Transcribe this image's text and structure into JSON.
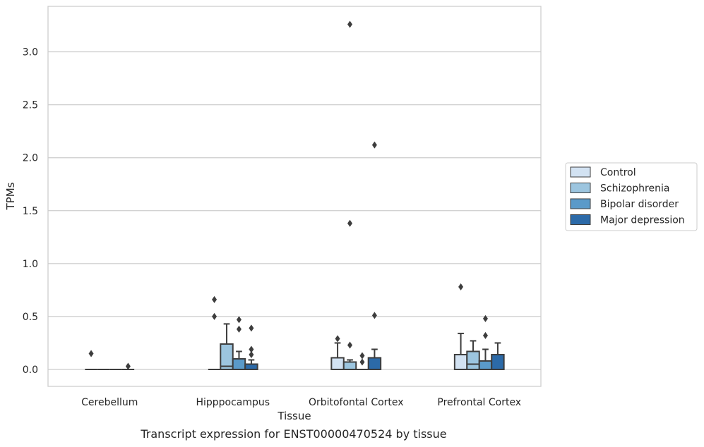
{
  "caption": "Transcript expression for ENST00000470524 by tissue",
  "chart_data": {
    "type": "box",
    "xlabel": "Tissue",
    "ylabel": "TPMs",
    "ylim": [
      -0.16,
      3.43
    ],
    "yticks": [
      "0.0",
      "0.5",
      "1.0",
      "1.5",
      "2.0",
      "2.5",
      "3.0"
    ],
    "grid": "horizontal",
    "legend_position": "right",
    "categories": [
      "Cerebellum",
      "Hipppocampus",
      "Orbitofontal Cortex",
      "Prefrontal Cortex"
    ],
    "series": [
      {
        "name": "Control",
        "color": "#d2e2f2",
        "boxes": [
          {
            "q1": 0.0,
            "median": 0.0,
            "q3": 0.0,
            "whislo": 0.0,
            "whishi": 0.0,
            "fliers": [
              0.15
            ]
          },
          {
            "q1": 0.0,
            "median": 0.0,
            "q3": 0.0,
            "whislo": 0.0,
            "whishi": 0.0,
            "fliers": [
              0.66,
              0.5
            ]
          },
          {
            "q1": 0.0,
            "median": 0.0,
            "q3": 0.11,
            "whislo": 0.0,
            "whishi": 0.25,
            "fliers": [
              0.29
            ]
          },
          {
            "q1": 0.0,
            "median": 0.0,
            "q3": 0.14,
            "whislo": 0.0,
            "whishi": 0.34,
            "fliers": [
              0.78
            ]
          }
        ]
      },
      {
        "name": "Schizophrenia",
        "color": "#9cc5df",
        "boxes": [
          {
            "q1": 0.0,
            "median": 0.0,
            "q3": 0.0,
            "whislo": 0.0,
            "whishi": 0.0,
            "fliers": []
          },
          {
            "q1": 0.0,
            "median": 0.03,
            "q3": 0.24,
            "whislo": 0.0,
            "whishi": 0.43,
            "fliers": []
          },
          {
            "q1": 0.0,
            "median": 0.0,
            "q3": 0.07,
            "whislo": 0.0,
            "whishi": 0.09,
            "fliers": [
              0.23,
              1.38,
              3.26
            ]
          },
          {
            "q1": 0.0,
            "median": 0.05,
            "q3": 0.17,
            "whislo": 0.0,
            "whishi": 0.27,
            "fliers": []
          }
        ]
      },
      {
        "name": "Bipolar disorder",
        "color": "#5a9ac9",
        "boxes": [
          {
            "q1": 0.0,
            "median": 0.0,
            "q3": 0.0,
            "whislo": 0.0,
            "whishi": 0.0,
            "fliers": []
          },
          {
            "q1": 0.0,
            "median": 0.0,
            "q3": 0.1,
            "whislo": 0.0,
            "whishi": 0.17,
            "fliers": [
              0.47,
              0.38
            ]
          },
          {
            "q1": 0.0,
            "median": 0.0,
            "q3": 0.0,
            "whislo": 0.0,
            "whishi": 0.0,
            "fliers": [
              0.13,
              0.07
            ]
          },
          {
            "q1": 0.0,
            "median": 0.0,
            "q3": 0.08,
            "whislo": 0.0,
            "whishi": 0.19,
            "fliers": [
              0.48,
              0.32
            ]
          }
        ]
      },
      {
        "name": "Major depression",
        "color": "#2c6aa8",
        "boxes": [
          {
            "q1": 0.0,
            "median": 0.0,
            "q3": 0.0,
            "whislo": 0.0,
            "whishi": 0.0,
            "fliers": [
              0.03
            ]
          },
          {
            "q1": 0.0,
            "median": 0.0,
            "q3": 0.05,
            "whislo": 0.0,
            "whishi": 0.09,
            "fliers": [
              0.39,
              0.19,
              0.14
            ]
          },
          {
            "q1": 0.0,
            "median": 0.0,
            "q3": 0.11,
            "whislo": 0.0,
            "whishi": 0.19,
            "fliers": [
              2.12,
              0.51
            ]
          },
          {
            "q1": 0.0,
            "median": 0.0,
            "q3": 0.14,
            "whislo": 0.0,
            "whishi": 0.25,
            "fliers": []
          }
        ]
      }
    ]
  }
}
